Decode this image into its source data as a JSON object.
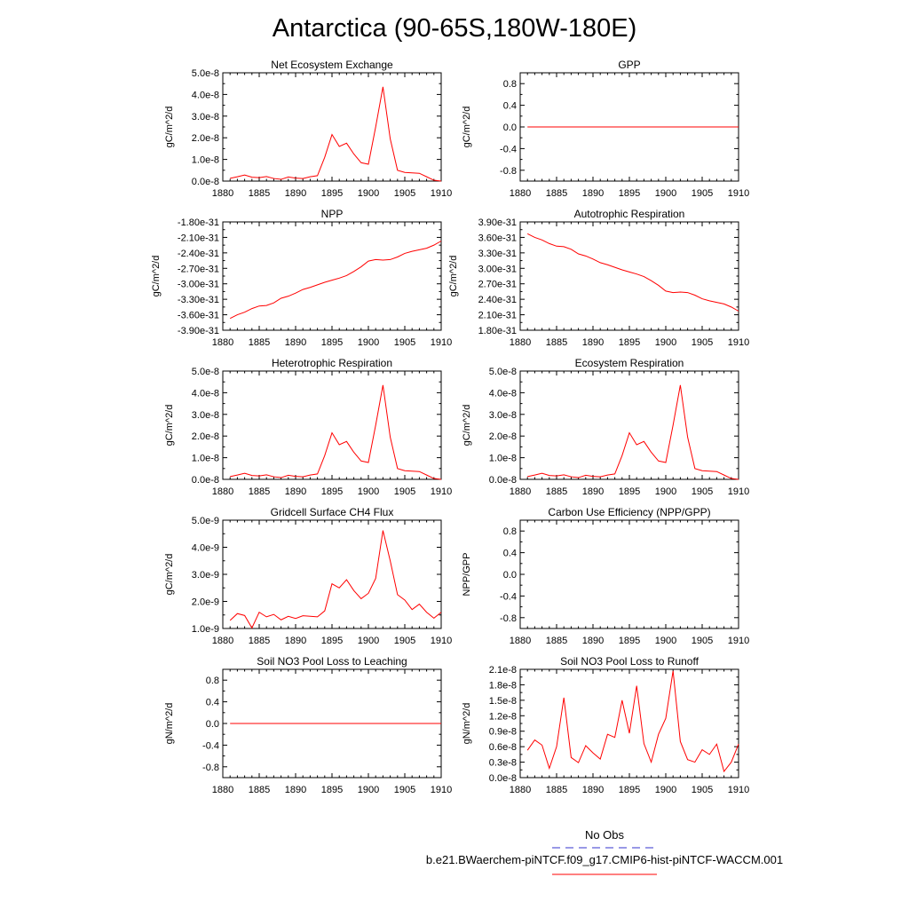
{
  "title": "Antarctica (90-65S,180W-180E)",
  "colors": {
    "model": "#ff0000",
    "obs": "#3333cc",
    "axis": "#000000"
  },
  "legend": {
    "obs_label": "No Obs",
    "model_label": "b.e21.BWaerchem-piNTCF.f09_g17.CMIP6-hist-piNTCF-WACCM.001"
  },
  "chart_data": [
    {
      "type": "line",
      "title": "Net Ecosystem Exchange",
      "ylabel": "gC/m^2/d",
      "xlim": [
        1880,
        1910
      ],
      "ylim": [
        0,
        5e-08
      ],
      "xticks": [
        1880,
        1885,
        1890,
        1895,
        1900,
        1905,
        1910
      ],
      "yticks": [
        0,
        1e-08,
        2e-08,
        3e-08,
        4e-08,
        5e-08
      ],
      "ytick_labels": [
        "0.0e-8",
        "1.0e-8",
        "2.0e-8",
        "3.0e-8",
        "4.0e-8",
        "5.0e-8"
      ],
      "series": [
        {
          "x": [
            1881,
            1882,
            1883,
            1884,
            1885,
            1886,
            1887,
            1888,
            1889,
            1890,
            1891,
            1892,
            1893,
            1894,
            1895,
            1896,
            1897,
            1898,
            1899,
            1900,
            1901,
            1902,
            1903,
            1904,
            1905,
            1906,
            1907,
            1908,
            1909,
            1910
          ],
          "values": [
            1.3e-09,
            2e-09,
            2.8e-09,
            1.8e-09,
            1.6e-09,
            2.1e-09,
            1.2e-09,
            8e-10,
            1.9e-09,
            1.4e-09,
            1.2e-09,
            2e-09,
            2.5e-09,
            1.1e-08,
            2.15e-08,
            1.6e-08,
            1.75e-08,
            1.25e-08,
            8.5e-09,
            7.8e-09,
            2.5e-08,
            4.35e-08,
            1.95e-08,
            5e-09,
            4e-09,
            3.8e-09,
            3.6e-09,
            2e-09,
            4e-10,
            0.0
          ]
        }
      ]
    },
    {
      "type": "line",
      "title": "GPP",
      "ylabel": "gC/m^2/d",
      "xlim": [
        1880,
        1910
      ],
      "ylim": [
        -1,
        1
      ],
      "xticks": [
        1880,
        1885,
        1890,
        1895,
        1900,
        1905,
        1910
      ],
      "yticks": [
        -0.8,
        -0.4,
        0,
        0.4,
        0.8
      ],
      "ytick_labels": [
        "-0.8",
        "-0.4",
        "0.0",
        "0.4",
        "0.8"
      ],
      "series": [
        {
          "x": [
            1881,
            1910
          ],
          "values": [
            0,
            0
          ]
        }
      ]
    },
    {
      "type": "line",
      "title": "NPP",
      "ylabel": "gC/m^2/d",
      "xlim": [
        1880,
        1910
      ],
      "ylim": [
        -3.9e-31,
        -1.8e-31
      ],
      "xticks": [
        1880,
        1885,
        1890,
        1895,
        1900,
        1905,
        1910
      ],
      "yticks": [
        -3.9e-31,
        -3.6e-31,
        -3.3e-31,
        -3e-31,
        -2.7e-31,
        -2.4e-31,
        -2.1e-31,
        -1.8e-31
      ],
      "ytick_labels": [
        "-3.90e-31",
        "-3.60e-31",
        "-3.30e-31",
        "-3.00e-31",
        "-2.70e-31",
        "-2.40e-31",
        "-2.10e-31",
        "-1.80e-31"
      ],
      "series": [
        {
          "x": [
            1881,
            1882,
            1883,
            1884,
            1885,
            1886,
            1887,
            1888,
            1889,
            1890,
            1891,
            1892,
            1893,
            1894,
            1895,
            1896,
            1897,
            1898,
            1899,
            1900,
            1901,
            1902,
            1903,
            1904,
            1905,
            1906,
            1907,
            1908,
            1909,
            1910
          ],
          "values": [
            -3.67e-31,
            -3.6e-31,
            -3.55e-31,
            -3.48e-31,
            -3.43e-31,
            -3.42e-31,
            -3.37e-31,
            -3.28e-31,
            -3.24e-31,
            -3.18e-31,
            -3.11e-31,
            -3.07e-31,
            -3.02e-31,
            -2.97e-31,
            -2.93e-31,
            -2.89e-31,
            -2.84e-31,
            -2.76e-31,
            -2.67e-31,
            -2.56e-31,
            -2.53e-31,
            -2.54e-31,
            -2.53e-31,
            -2.48e-31,
            -2.41e-31,
            -2.37e-31,
            -2.34e-31,
            -2.31e-31,
            -2.25e-31,
            -2.17e-31
          ]
        }
      ]
    },
    {
      "type": "line",
      "title": "Autotrophic Respiration",
      "ylabel": "gC/m^2/d",
      "xlim": [
        1880,
        1910
      ],
      "ylim": [
        1.8e-31,
        3.9e-31
      ],
      "xticks": [
        1880,
        1885,
        1890,
        1895,
        1900,
        1905,
        1910
      ],
      "yticks": [
        1.8e-31,
        2.1e-31,
        2.4e-31,
        2.7e-31,
        3e-31,
        3.3e-31,
        3.6e-31,
        3.9e-31
      ],
      "ytick_labels": [
        "1.80e-31",
        "2.10e-31",
        "2.40e-31",
        "2.70e-31",
        "3.00e-31",
        "3.30e-31",
        "3.60e-31",
        "3.90e-31"
      ],
      "series": [
        {
          "x": [
            1881,
            1882,
            1883,
            1884,
            1885,
            1886,
            1887,
            1888,
            1889,
            1890,
            1891,
            1892,
            1893,
            1894,
            1895,
            1896,
            1897,
            1898,
            1899,
            1900,
            1901,
            1902,
            1903,
            1904,
            1905,
            1906,
            1907,
            1908,
            1909,
            1910
          ],
          "values": [
            3.67e-31,
            3.6e-31,
            3.55e-31,
            3.48e-31,
            3.43e-31,
            3.42e-31,
            3.37e-31,
            3.28e-31,
            3.24e-31,
            3.18e-31,
            3.11e-31,
            3.07e-31,
            3.02e-31,
            2.97e-31,
            2.93e-31,
            2.89e-31,
            2.84e-31,
            2.76e-31,
            2.67e-31,
            2.56e-31,
            2.53e-31,
            2.54e-31,
            2.53e-31,
            2.48e-31,
            2.41e-31,
            2.37e-31,
            2.34e-31,
            2.31e-31,
            2.25e-31,
            2.17e-31
          ]
        }
      ]
    },
    {
      "type": "line",
      "title": "Heterotrophic Respiration",
      "ylabel": "gC/m^2/d",
      "xlim": [
        1880,
        1910
      ],
      "ylim": [
        0,
        5e-08
      ],
      "xticks": [
        1880,
        1885,
        1890,
        1895,
        1900,
        1905,
        1910
      ],
      "yticks": [
        0,
        1e-08,
        2e-08,
        3e-08,
        4e-08,
        5e-08
      ],
      "ytick_labels": [
        "0.0e-8",
        "1.0e-8",
        "2.0e-8",
        "3.0e-8",
        "4.0e-8",
        "5.0e-8"
      ],
      "series": [
        {
          "x": [
            1881,
            1882,
            1883,
            1884,
            1885,
            1886,
            1887,
            1888,
            1889,
            1890,
            1891,
            1892,
            1893,
            1894,
            1895,
            1896,
            1897,
            1898,
            1899,
            1900,
            1901,
            1902,
            1903,
            1904,
            1905,
            1906,
            1907,
            1908,
            1909,
            1910
          ],
          "values": [
            1.3e-09,
            2e-09,
            2.8e-09,
            1.8e-09,
            1.6e-09,
            2.1e-09,
            1.2e-09,
            8e-10,
            1.9e-09,
            1.4e-09,
            1.2e-09,
            2e-09,
            2.5e-09,
            1.1e-08,
            2.15e-08,
            1.6e-08,
            1.75e-08,
            1.25e-08,
            8.5e-09,
            7.8e-09,
            2.5e-08,
            4.35e-08,
            1.95e-08,
            5e-09,
            4e-09,
            3.8e-09,
            3.6e-09,
            2e-09,
            4e-10,
            0.0
          ]
        }
      ]
    },
    {
      "type": "line",
      "title": "Ecosystem Respiration",
      "ylabel": "gC/m^2/d",
      "xlim": [
        1880,
        1910
      ],
      "ylim": [
        0,
        5e-08
      ],
      "xticks": [
        1880,
        1885,
        1890,
        1895,
        1900,
        1905,
        1910
      ],
      "yticks": [
        0,
        1e-08,
        2e-08,
        3e-08,
        4e-08,
        5e-08
      ],
      "ytick_labels": [
        "0.0e-8",
        "1.0e-8",
        "2.0e-8",
        "3.0e-8",
        "4.0e-8",
        "5.0e-8"
      ],
      "series": [
        {
          "x": [
            1881,
            1882,
            1883,
            1884,
            1885,
            1886,
            1887,
            1888,
            1889,
            1890,
            1891,
            1892,
            1893,
            1894,
            1895,
            1896,
            1897,
            1898,
            1899,
            1900,
            1901,
            1902,
            1903,
            1904,
            1905,
            1906,
            1907,
            1908,
            1909,
            1910
          ],
          "values": [
            1.3e-09,
            2e-09,
            2.8e-09,
            1.8e-09,
            1.6e-09,
            2.1e-09,
            1.2e-09,
            8e-10,
            1.9e-09,
            1.4e-09,
            1.2e-09,
            2e-09,
            2.5e-09,
            1.1e-08,
            2.15e-08,
            1.6e-08,
            1.75e-08,
            1.25e-08,
            8.5e-09,
            7.8e-09,
            2.5e-08,
            4.35e-08,
            1.95e-08,
            5e-09,
            4e-09,
            3.8e-09,
            3.6e-09,
            2e-09,
            4e-10,
            0.0
          ]
        }
      ]
    },
    {
      "type": "line",
      "title": "Gridcell Surface CH4 Flux",
      "ylabel": "gC/m^2/d",
      "xlim": [
        1880,
        1910
      ],
      "ylim": [
        1e-09,
        5e-09
      ],
      "xticks": [
        1880,
        1885,
        1890,
        1895,
        1900,
        1905,
        1910
      ],
      "yticks": [
        1e-09,
        2e-09,
        3e-09,
        4e-09,
        5e-09
      ],
      "ytick_labels": [
        "1.0e-9",
        "2.0e-9",
        "3.0e-9",
        "4.0e-9",
        "5.0e-9"
      ],
      "series": [
        {
          "x": [
            1881,
            1882,
            1883,
            1884,
            1885,
            1886,
            1887,
            1888,
            1889,
            1890,
            1891,
            1892,
            1893,
            1894,
            1895,
            1896,
            1897,
            1898,
            1899,
            1900,
            1901,
            1902,
            1903,
            1904,
            1905,
            1906,
            1907,
            1908,
            1909,
            1910
          ],
          "values": [
            1.3e-09,
            1.55e-09,
            1.48e-09,
            1.02e-09,
            1.6e-09,
            1.43e-09,
            1.52e-09,
            1.32e-09,
            1.45e-09,
            1.37e-09,
            1.47e-09,
            1.45e-09,
            1.43e-09,
            1.65e-09,
            2.65e-09,
            2.5e-09,
            2.8e-09,
            2.4e-09,
            2.1e-09,
            2.3e-09,
            2.85e-09,
            4.62e-09,
            3.5e-09,
            2.25e-09,
            2.05e-09,
            1.7e-09,
            1.9e-09,
            1.6e-09,
            1.38e-09,
            1.6e-09
          ]
        }
      ]
    },
    {
      "type": "line",
      "title": "Carbon Use Efficiency (NPP/GPP)",
      "ylabel": "NPP/GPP",
      "xlim": [
        1880,
        1910
      ],
      "ylim": [
        -1,
        1
      ],
      "xticks": [
        1880,
        1885,
        1890,
        1895,
        1900,
        1905,
        1910
      ],
      "yticks": [
        -0.8,
        -0.4,
        0,
        0.4,
        0.8
      ],
      "ytick_labels": [
        "-0.8",
        "-0.4",
        "0.0",
        "0.4",
        "0.8"
      ],
      "series": []
    },
    {
      "type": "line",
      "title": "Soil NO3 Pool Loss to Leaching",
      "ylabel": "gN/m^2/d",
      "xlim": [
        1880,
        1910
      ],
      "ylim": [
        -1,
        1
      ],
      "xticks": [
        1880,
        1885,
        1890,
        1895,
        1900,
        1905,
        1910
      ],
      "yticks": [
        -0.8,
        -0.4,
        0,
        0.4,
        0.8
      ],
      "ytick_labels": [
        "-0.8",
        "-0.4",
        "0.0",
        "0.4",
        "0.8"
      ],
      "series": [
        {
          "x": [
            1881,
            1910
          ],
          "values": [
            0,
            0
          ]
        }
      ]
    },
    {
      "type": "line",
      "title": "Soil NO3 Pool Loss to Runoff",
      "ylabel": "gN/m^2/d",
      "xlim": [
        1880,
        1910
      ],
      "ylim": [
        0,
        2.1e-08
      ],
      "xticks": [
        1880,
        1885,
        1890,
        1895,
        1900,
        1905,
        1910
      ],
      "yticks": [
        0,
        3e-09,
        6e-09,
        9e-09,
        1.2e-08,
        1.5e-08,
        1.8e-08,
        2.1e-08
      ],
      "ytick_labels": [
        "0.0e-8",
        "0.3e-8",
        "0.6e-8",
        "0.9e-8",
        "1.2e-8",
        "1.5e-8",
        "1.8e-8",
        "2.1e-8"
      ],
      "series": [
        {
          "x": [
            1881,
            1882,
            1883,
            1884,
            1885,
            1886,
            1887,
            1888,
            1889,
            1890,
            1891,
            1892,
            1893,
            1894,
            1895,
            1896,
            1897,
            1898,
            1899,
            1900,
            1901,
            1902,
            1903,
            1904,
            1905,
            1906,
            1907,
            1908,
            1909,
            1910
          ],
          "values": [
            5.3e-09,
            7.3e-09,
            6.3e-09,
            1.8e-09,
            6e-09,
            1.55e-08,
            3.9e-09,
            2.9e-09,
            6.2e-09,
            4.8e-09,
            3.6e-09,
            8.4e-09,
            7.8e-09,
            1.5e-08,
            8.6e-09,
            1.78e-08,
            6.6e-09,
            3e-09,
            8.4e-09,
            1.15e-08,
            2.07e-08,
            7e-09,
            3.5e-09,
            3e-09,
            5.4e-09,
            4.5e-09,
            6.5e-09,
            1.2e-09,
            3e-09,
            6.5e-09
          ]
        }
      ]
    }
  ]
}
